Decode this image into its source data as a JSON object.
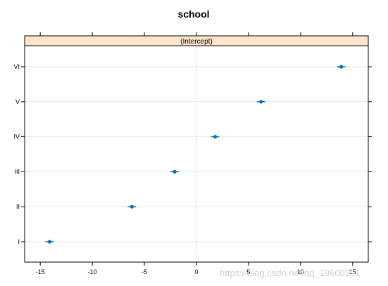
{
  "chart_data": {
    "type": "scatter",
    "title": "school",
    "panel_label": "(Intercept)",
    "xlim": [
      -16.5,
      16.5
    ],
    "x_ticks": [
      -15,
      -10,
      -5,
      0,
      5,
      10,
      15
    ],
    "x_tick_labels": [
      "-15",
      "-10",
      "-5",
      "0",
      "5",
      "10",
      "15"
    ],
    "categories": [
      "I",
      "II",
      "III",
      "IV",
      "V",
      "VI"
    ],
    "series": [
      {
        "points": [
          {
            "category": "I",
            "x": -14.1,
            "lo": -14.5,
            "hi": -13.7
          },
          {
            "category": "II",
            "x": -6.2,
            "lo": -6.6,
            "hi": -5.8
          },
          {
            "category": "III",
            "x": -2.1,
            "lo": -2.5,
            "hi": -1.7
          },
          {
            "category": "IV",
            "x": 1.8,
            "lo": 1.4,
            "hi": 2.2
          },
          {
            "category": "V",
            "x": 6.2,
            "lo": 5.8,
            "hi": 6.6
          },
          {
            "category": "VI",
            "x": 13.9,
            "lo": 13.5,
            "hi": 14.3
          }
        ]
      }
    ],
    "grid": true,
    "colors": {
      "point": "#0072bd",
      "strip_fill": "#ffe5cc",
      "grid": "#e6e6e6"
    }
  },
  "watermark": "https://blog.csdn.net/qq_19600291"
}
